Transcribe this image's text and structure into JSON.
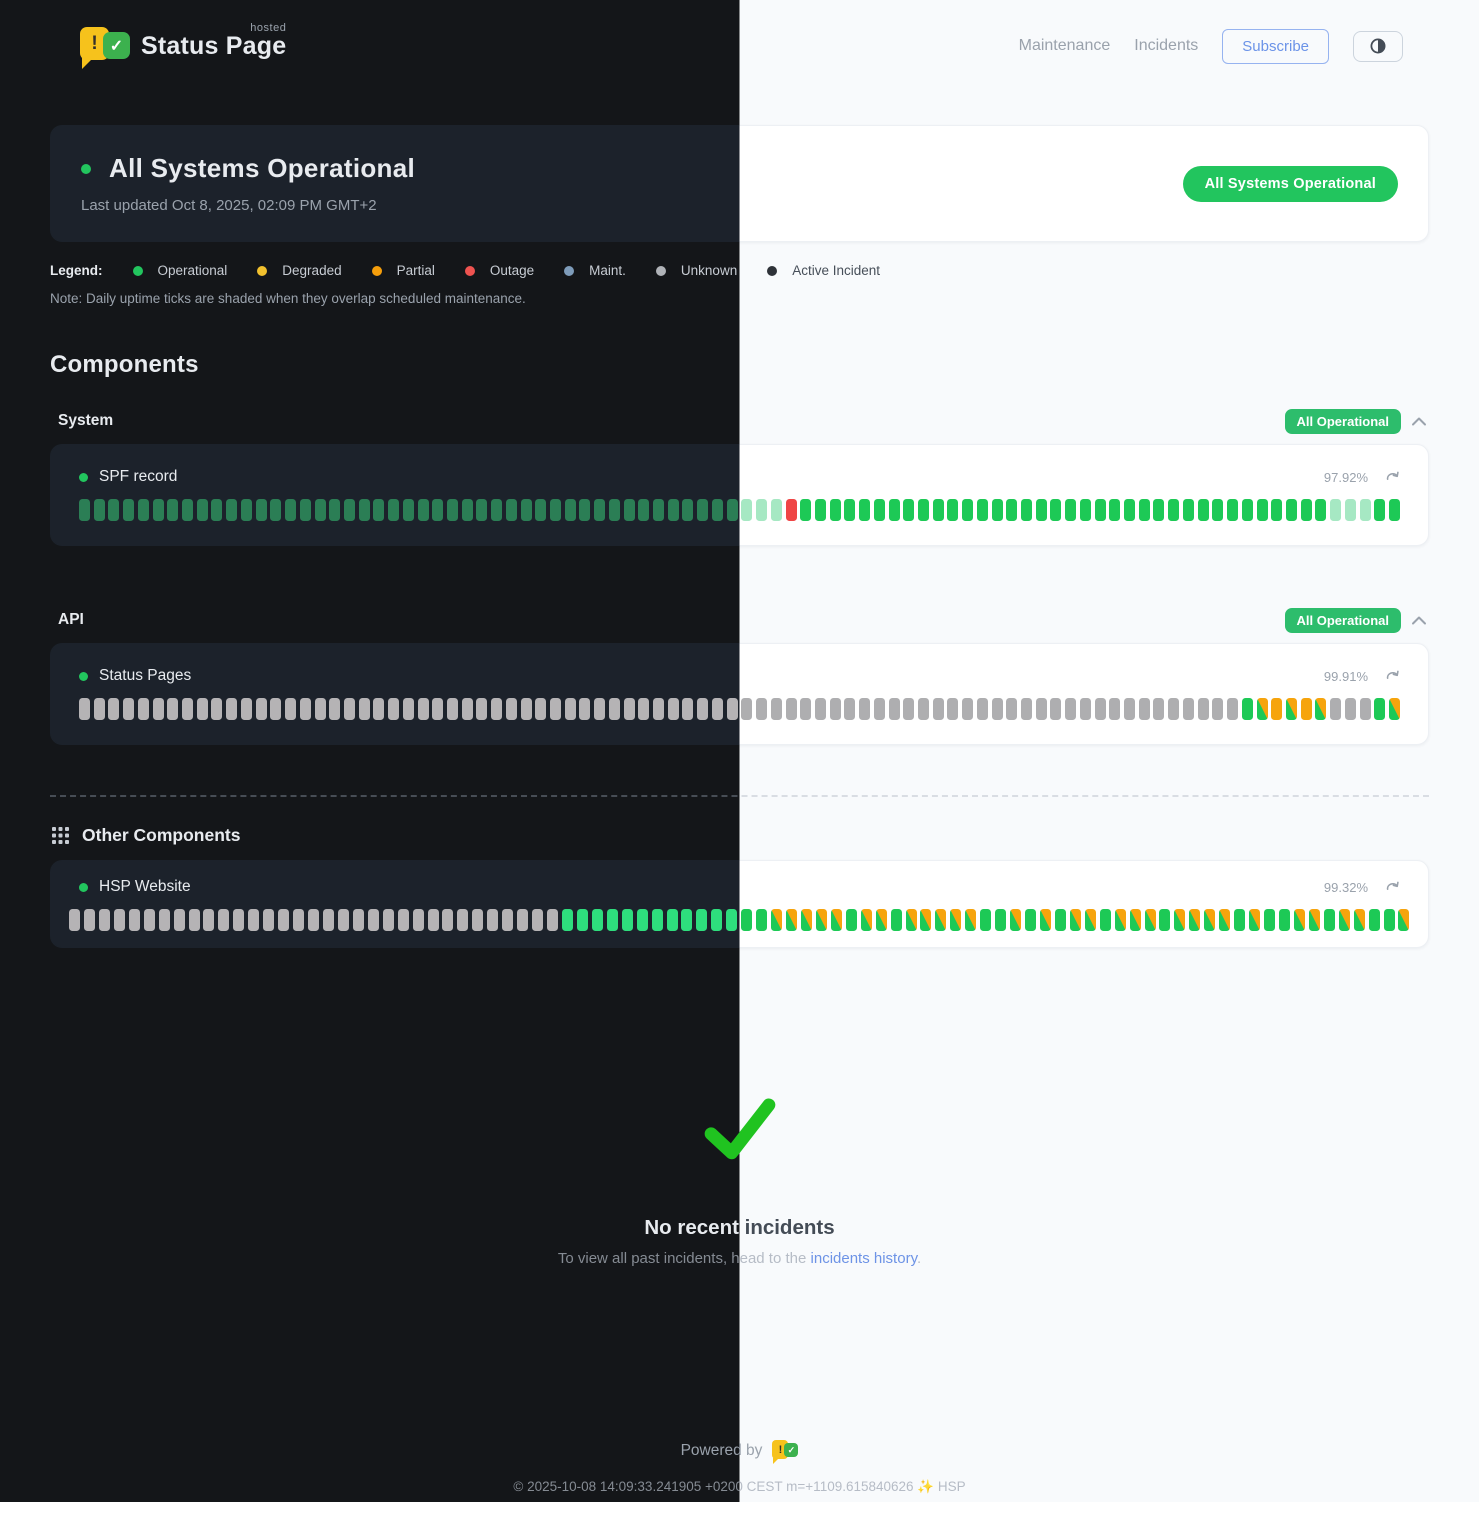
{
  "header": {
    "brand": {
      "name": "Status Page",
      "superscript": "hosted"
    },
    "nav": [
      {
        "label": "Maintenance"
      },
      {
        "label": "Incidents"
      }
    ],
    "subscribe_label": "Subscribe"
  },
  "banner": {
    "title": "All Systems Operational",
    "last_updated": "Last updated Oct 8, 2025, 02:09 PM GMT+2",
    "badge": "All Systems Operational"
  },
  "legend": {
    "label": "Legend:",
    "items": [
      {
        "label": "Operational",
        "color": "#22c55e"
      },
      {
        "label": "Degraded",
        "color": "#f2c12e"
      },
      {
        "label": "Partial",
        "color": "#f59e0b"
      },
      {
        "label": "Outage",
        "color": "#ef5350"
      },
      {
        "label": "Maint.",
        "color": "#7e9cba"
      },
      {
        "label": "Unknown",
        "color": "#b0b3b8"
      },
      {
        "label": "Active Incident",
        "color": "#2e3238"
      }
    ],
    "note": "Note: Daily uptime ticks are shaded when they overlap scheduled maintenance."
  },
  "components": {
    "heading": "Components",
    "tick_status_map": {
      "g": "operational",
      "m": "operational-shaded-maintenance",
      "r": "outage",
      "u": "unknown",
      "o": "partial",
      "d": "operational-partial-maintenance-split"
    },
    "groups": [
      {
        "name": "System",
        "badge": "All Operational",
        "items": [
          {
            "name": "SPF record",
            "uptime": "97.92%",
            "ticks": "mmmmmmmmmmmmmmmmmmmmmmmmmmmmmmmmmmmmmmmmmmmmmmmmrggggggggggggggggggggggggggggggggggggmmmgg"
          }
        ]
      },
      {
        "name": "API",
        "badge": "All Operational",
        "items": [
          {
            "name": "Status Pages",
            "uptime": "99.91%",
            "ticks": "uuuuuuuuuuuuuuuuuuuuuuuuuuuuuuuuuuuuuuuuuuuuuuuuuuuuuuuuuuuuuuuuuuuuuuuuuuuuuuugdododuuugd"
          }
        ]
      }
    ],
    "other": {
      "title": "Other Components",
      "items": [
        {
          "name": "HSP Website",
          "uptime": "99.32%",
          "ticks": "uuuuuuuuuuuuuuuuuuuuuuuuuuuuuuuuuggggggggggggggdddddgddgdddddggdgdgddgdddgddddgdggddgddggd"
        }
      ]
    }
  },
  "incidents": {
    "title": "No recent incidents",
    "subtitle_prefix": "To view all past incidents, head to the ",
    "link_label": "incidents history",
    "subtitle_suffix": "."
  },
  "footer": {
    "powered_by": "Powered by",
    "copyright": "© 2025-10-08 14:09:33.241905 +0200 CEST m=+1109.615840626 ✨ HSP"
  },
  "colors": {
    "accent_green": "#22c55e",
    "badge_green": "#2dbd6c",
    "link_blue": "#6d93e6",
    "subscribe_blue": "#6b93e8",
    "outage_red": "#ef4444",
    "partial_orange": "#f6a40d"
  },
  "icons": {
    "brand": "status-page-logo-icon",
    "theme_toggle": "contrast-half-circle-icon",
    "group_collapse": "chevron-up-icon",
    "refresh": "refresh-icon",
    "other_components": "grid-icon",
    "empty_state": "big-checkmark-icon"
  }
}
